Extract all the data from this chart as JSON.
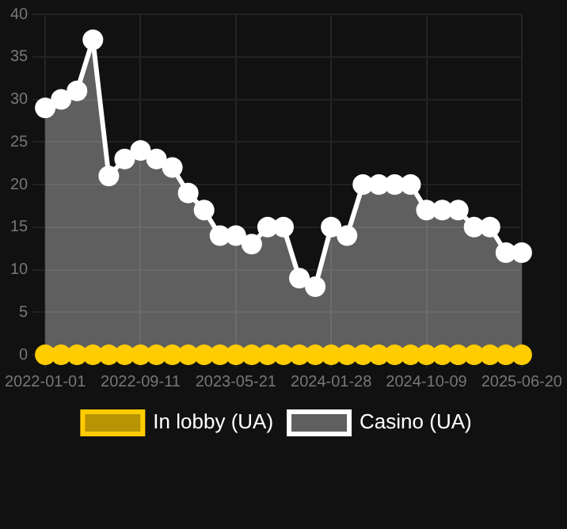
{
  "chart_data": {
    "type": "area",
    "categories": [
      "2022-01-01",
      null,
      null,
      null,
      null,
      null,
      "2022-09-11",
      null,
      null,
      null,
      null,
      null,
      "2023-05-21",
      null,
      null,
      null,
      null,
      null,
      "2024-01-28",
      null,
      null,
      null,
      null,
      null,
      "2024-10-09",
      null,
      null,
      null,
      null,
      null,
      "2025-06-20"
    ],
    "series": [
      {
        "name": "In lobby (UA)",
        "type": "line",
        "color": "#ffcc00",
        "values": [
          0,
          0,
          0,
          0,
          0,
          0,
          0,
          0,
          0,
          0,
          0,
          0,
          0,
          0,
          0,
          0,
          0,
          0,
          0,
          0,
          0,
          0,
          0,
          0,
          0,
          0,
          0,
          0,
          0,
          0,
          0
        ]
      },
      {
        "name": "Casino (UA)",
        "color": "#ffffff",
        "values": [
          29,
          30,
          31,
          37,
          21,
          23,
          24,
          23,
          22,
          19,
          17,
          14,
          14,
          13,
          15,
          15,
          9,
          8,
          15,
          14,
          20,
          20,
          20,
          20,
          17,
          17,
          17,
          15,
          15,
          12,
          12
        ]
      }
    ],
    "ylim": [
      0,
      40
    ],
    "yticks": [
      0,
      5,
      10,
      15,
      20,
      25,
      30,
      35,
      40
    ],
    "grid": true,
    "legend": "bottom",
    "marker": "circle"
  }
}
